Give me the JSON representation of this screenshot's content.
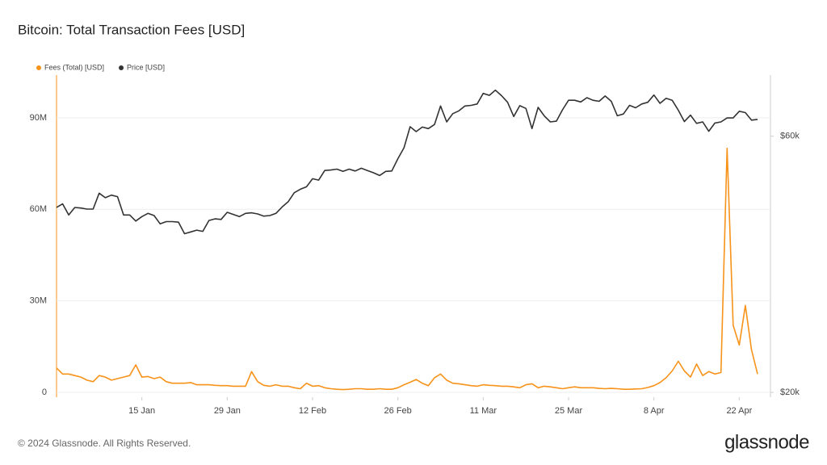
{
  "chart_data": {
    "type": "line",
    "title": "Bitcoin: Total Transaction Fees [USD]",
    "categories": [
      null,
      null,
      null,
      null,
      null,
      null,
      null,
      null,
      null,
      null,
      null,
      null,
      null,
      null,
      "15 Jan",
      null,
      null,
      null,
      null,
      null,
      null,
      null,
      null,
      null,
      null,
      null,
      null,
      null,
      "29 Jan",
      null,
      null,
      null,
      null,
      null,
      null,
      null,
      null,
      null,
      null,
      null,
      null,
      null,
      "12 Feb",
      null,
      null,
      null,
      null,
      null,
      null,
      null,
      null,
      null,
      null,
      null,
      null,
      null,
      "26 Feb",
      null,
      null,
      null,
      null,
      null,
      null,
      null,
      null,
      null,
      null,
      null,
      null,
      null,
      "11 Mar",
      null,
      null,
      null,
      null,
      null,
      null,
      null,
      null,
      null,
      null,
      null,
      null,
      null,
      "25 Mar",
      null,
      null,
      null,
      null,
      null,
      null,
      null,
      null,
      null,
      null,
      null,
      null,
      null,
      "8 Apr",
      null,
      null,
      null,
      null,
      null,
      null,
      null,
      null,
      null,
      null,
      null,
      null,
      null,
      "22 Apr",
      null,
      null,
      null
    ],
    "series": [
      {
        "name": "Fees (Total) [USD]",
        "color": "#f7931a",
        "axis": "y",
        "values": [
          8000000,
          6000000,
          6000000,
          5500000,
          5000000,
          4000000,
          3500000,
          5500000,
          5000000,
          4000000,
          4500000,
          5000000,
          5500000,
          9000000,
          5000000,
          5200000,
          4500000,
          5000000,
          3500000,
          3000000,
          3000000,
          3000000,
          3200000,
          2500000,
          2500000,
          2500000,
          2300000,
          2200000,
          2200000,
          2000000,
          2000000,
          2000000,
          6800000,
          3500000,
          2300000,
          2000000,
          2500000,
          2000000,
          2000000,
          1500000,
          1200000,
          3000000,
          2000000,
          2200000,
          1500000,
          1200000,
          1000000,
          900000,
          1000000,
          1200000,
          1200000,
          1000000,
          1000000,
          1200000,
          1000000,
          1000000,
          1500000,
          2500000,
          3300000,
          4200000,
          3000000,
          2200000,
          4800000,
          6000000,
          4000000,
          3000000,
          2800000,
          2500000,
          2200000,
          2000000,
          2500000,
          2300000,
          2200000,
          2000000,
          2000000,
          1800000,
          1500000,
          2500000,
          2800000,
          1500000,
          2000000,
          1800000,
          1500000,
          1200000,
          1500000,
          1800000,
          1500000,
          1500000,
          1500000,
          1300000,
          1200000,
          1300000,
          1200000,
          1000000,
          1000000,
          1100000,
          1200000,
          1600000,
          2200000,
          3200000,
          4800000,
          7000000,
          10200000,
          7000000,
          5000000,
          9300000,
          5500000,
          6800000,
          6000000,
          6500000,
          80000000,
          22000000,
          15500000,
          28500000,
          14000000,
          6000000
        ]
      },
      {
        "name": "Price [USD]",
        "color": "#333333",
        "axis": "y2",
        "values": [
          44200,
          44900,
          42800,
          44200,
          44100,
          43900,
          43900,
          47000,
          46100,
          46600,
          46300,
          42800,
          42800,
          41700,
          42500,
          43100,
          42700,
          41200,
          41600,
          41600,
          41500,
          39500,
          39800,
          40100,
          39900,
          41800,
          42100,
          42000,
          43300,
          42900,
          42500,
          43100,
          43200,
          43000,
          42600,
          42700,
          43100,
          44300,
          45300,
          47100,
          47800,
          48300,
          50000,
          49700,
          51800,
          51900,
          52100,
          51600,
          52100,
          51700,
          52300,
          51800,
          51300,
          50700,
          51600,
          51700,
          54500,
          57100,
          62500,
          61200,
          62400,
          62000,
          63100,
          68300,
          63800,
          66100,
          66900,
          68300,
          68500,
          68900,
          72100,
          71500,
          73100,
          71400,
          69400,
          65300,
          68400,
          67600,
          62000,
          67900,
          65500,
          63800,
          64000,
          67200,
          70000,
          70000,
          69500,
          70800,
          70000,
          69700,
          71300,
          69700,
          65500,
          66000,
          68500,
          67800,
          68900,
          69400,
          71600,
          69100,
          70600,
          70000,
          67100,
          63900,
          65700,
          63400,
          63800,
          61300,
          63500,
          63800,
          64900,
          64900,
          66800,
          66400,
          64300,
          64500
        ]
      }
    ],
    "ylim": [
      0,
      104000000
    ],
    "yticks": [
      0,
      {
        "value": 30000000,
        "label": "30M"
      },
      {
        "value": 60000000,
        "label": "60M"
      },
      {
        "value": 90000000,
        "label": "90M"
      }
    ],
    "y2lim": [
      20000,
      78000
    ],
    "y2scale": "log",
    "y2ticks": [
      {
        "value": 20000,
        "label": "$20k"
      },
      {
        "value": 60000,
        "label": "$60k"
      }
    ],
    "grid": true,
    "legend": "top-left"
  },
  "footer": {
    "copyright": "© 2024 Glassnode. All Rights Reserved.",
    "brand": "glassnode"
  }
}
